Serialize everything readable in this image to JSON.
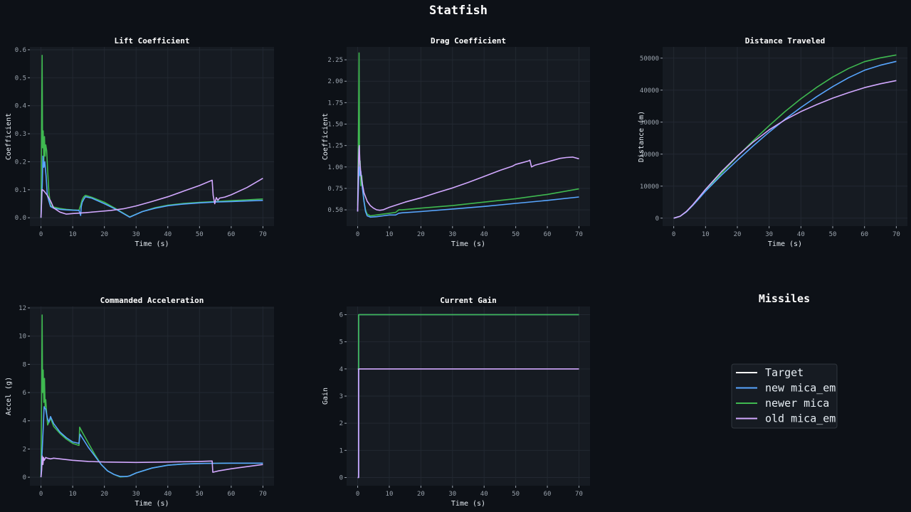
{
  "title": "Statfish",
  "colors": {
    "background": "#0d1117",
    "axes_bg": "#161b22",
    "grid": "#222831",
    "Target": "#ffffff",
    "new mica_em": "#58a6ff",
    "newer mica": "#3fb950",
    "old mica_em": "#d2a8ff"
  },
  "legend": {
    "title": "Missiles",
    "entries": [
      {
        "name": "Target",
        "color": "#ffffff"
      },
      {
        "name": "new mica_em",
        "color": "#58a6ff"
      },
      {
        "name": "newer mica",
        "color": "#3fb950"
      },
      {
        "name": "old mica_em",
        "color": "#d2a8ff"
      }
    ]
  },
  "chart_data": [
    {
      "type": "line",
      "title": "Lift Coefficient",
      "xlabel": "Time (s)",
      "ylabel": "Coefficient",
      "xlim": [
        -3.5,
        73.5
      ],
      "ylim": [
        -0.03,
        0.61
      ],
      "xticks": [
        0,
        10,
        20,
        30,
        40,
        50,
        60,
        70
      ],
      "yticks": [
        0.0,
        0.1,
        0.2,
        0.3,
        0.4,
        0.5,
        0.6
      ],
      "ytick_decimals": 1,
      "grid": true,
      "series": [
        {
          "name": "newer mica",
          "x": [
            0,
            0.2,
            0.35,
            0.5,
            0.7,
            0.9,
            1.1,
            1.3,
            1.5,
            1.8,
            2.1,
            2.5,
            3,
            3.5,
            4,
            6,
            8,
            10,
            12,
            12.5,
            13,
            13.5,
            14,
            16,
            20,
            24,
            28,
            32,
            36,
            40,
            45,
            50,
            55,
            60,
            65,
            70
          ],
          "y": [
            0,
            0.35,
            0.58,
            0.25,
            0.31,
            0.2,
            0.29,
            0.22,
            0.26,
            0.24,
            0.17,
            0.09,
            0.045,
            0.04,
            0.038,
            0.033,
            0.03,
            0.028,
            0.027,
            0.045,
            0.065,
            0.075,
            0.08,
            0.073,
            0.055,
            0.03,
            0.003,
            0.022,
            0.036,
            0.045,
            0.051,
            0.055,
            0.058,
            0.061,
            0.064,
            0.067
          ]
        },
        {
          "name": "new mica_em",
          "x": [
            0,
            0.2,
            0.4,
            0.6,
            0.9,
            1.2,
            1.6,
            2,
            2.5,
            3,
            4,
            6,
            8,
            10,
            12,
            12.5,
            12.7,
            13,
            13.5,
            14,
            16,
            20,
            24,
            28,
            32,
            36,
            40,
            45,
            50,
            55,
            60,
            65,
            70
          ],
          "y": [
            0,
            0.06,
            0.12,
            0.22,
            0.18,
            0.2,
            0.15,
            0.08,
            0.06,
            0.04,
            0.034,
            0.03,
            0.028,
            0.027,
            0.026,
            0.008,
            0.04,
            0.055,
            0.066,
            0.075,
            0.07,
            0.05,
            0.028,
            0.002,
            0.022,
            0.034,
            0.043,
            0.049,
            0.053,
            0.056,
            0.058,
            0.06,
            0.062
          ]
        },
        {
          "name": "old mica_em",
          "x": [
            0,
            0.3,
            0.5,
            1,
            2,
            3,
            4,
            6,
            8,
            10,
            14,
            18,
            22,
            26,
            30,
            35,
            40,
            45,
            50,
            54,
            54.3,
            54.8,
            55.3,
            55.8,
            56.3,
            58,
            60,
            65,
            70
          ],
          "y": [
            0,
            0.1,
            0.1,
            0.095,
            0.08,
            0.06,
            0.035,
            0.02,
            0.013,
            0.015,
            0.018,
            0.022,
            0.026,
            0.032,
            0.042,
            0.058,
            0.075,
            0.095,
            0.115,
            0.134,
            0.08,
            0.05,
            0.072,
            0.062,
            0.07,
            0.074,
            0.082,
            0.108,
            0.141
          ]
        }
      ]
    },
    {
      "type": "line",
      "title": "Drag Coefficient",
      "xlabel": "Time (s)",
      "ylabel": "Coefficient",
      "xlim": [
        -3.5,
        73.5
      ],
      "ylim": [
        0.31,
        2.4
      ],
      "xticks": [
        0,
        10,
        20,
        30,
        40,
        50,
        60,
        70
      ],
      "yticks": [
        0.5,
        0.75,
        1.0,
        1.25,
        1.5,
        1.75,
        2.0,
        2.25
      ],
      "ytick_decimals": 2,
      "grid": true,
      "series": [
        {
          "name": "newer mica",
          "x": [
            0,
            0.3,
            0.45,
            0.6,
            0.8,
            1,
            1.3,
            1.6,
            2,
            2.5,
            3,
            4,
            6,
            8,
            10,
            12,
            13,
            14,
            20,
            30,
            40,
            50,
            60,
            70
          ],
          "y": [
            0.55,
            1.6,
            2.33,
            0.9,
            1.07,
            0.78,
            0.9,
            0.75,
            0.6,
            0.5,
            0.45,
            0.43,
            0.44,
            0.45,
            0.46,
            0.47,
            0.5,
            0.5,
            0.52,
            0.55,
            0.59,
            0.63,
            0.68,
            0.745
          ]
        },
        {
          "name": "new mica_em",
          "x": [
            0,
            0.3,
            0.5,
            0.8,
            1,
            1.5,
            2,
            2.5,
            3,
            4,
            6,
            8,
            10,
            12,
            13,
            14,
            20,
            30,
            40,
            50,
            60,
            70
          ],
          "y": [
            0.48,
            0.85,
            1.0,
            0.9,
            0.95,
            0.75,
            0.6,
            0.48,
            0.43,
            0.415,
            0.42,
            0.43,
            0.44,
            0.44,
            0.46,
            0.465,
            0.48,
            0.51,
            0.54,
            0.575,
            0.61,
            0.65
          ]
        },
        {
          "name": "old mica_em",
          "x": [
            0,
            0.2,
            0.4,
            0.5,
            0.7,
            1,
            1.5,
            2,
            3,
            4,
            5,
            6,
            7,
            8,
            10,
            15,
            20,
            25,
            30,
            35,
            40,
            45,
            49,
            50,
            52,
            54,
            54.5,
            55,
            56,
            58,
            60,
            62,
            64,
            66,
            68,
            70
          ],
          "y": [
            0.48,
            0.95,
            1.2,
            1.25,
            1.05,
            0.92,
            0.8,
            0.7,
            0.6,
            0.55,
            0.52,
            0.5,
            0.495,
            0.5,
            0.53,
            0.59,
            0.64,
            0.7,
            0.755,
            0.82,
            0.89,
            0.96,
            1.01,
            1.03,
            1.05,
            1.07,
            1.08,
            1.0,
            1.02,
            1.04,
            1.06,
            1.08,
            1.1,
            1.11,
            1.115,
            1.095
          ]
        }
      ]
    },
    {
      "type": "line",
      "title": "Distance Traveled",
      "xlabel": "Time (s)",
      "ylabel": "Distance (m)",
      "xlim": [
        -3.5,
        73.5
      ],
      "ylim": [
        -2500,
        53500
      ],
      "xticks": [
        0,
        10,
        20,
        30,
        40,
        50,
        60,
        70
      ],
      "yticks": [
        0,
        10000,
        20000,
        30000,
        40000,
        50000
      ],
      "ytick_decimals": 0,
      "grid": true,
      "series": [
        {
          "name": "newer mica",
          "x": [
            0,
            2,
            4,
            6,
            8,
            10,
            15,
            20,
            25,
            30,
            35,
            40,
            45,
            50,
            55,
            60,
            65,
            70
          ],
          "y": [
            0,
            600,
            2000,
            4000,
            6200,
            8600,
            14000,
            19300,
            24200,
            28900,
            33300,
            37300,
            40900,
            44100,
            46800,
            48900,
            50100,
            51000
          ]
        },
        {
          "name": "new mica_em",
          "x": [
            0,
            2,
            4,
            6,
            8,
            10,
            15,
            20,
            25,
            30,
            35,
            40,
            45,
            50,
            55,
            60,
            65,
            70
          ],
          "y": [
            0,
            600,
            2000,
            4000,
            6200,
            8400,
            13400,
            18100,
            22600,
            26900,
            30900,
            34600,
            38000,
            41100,
            43900,
            46200,
            47800,
            49000
          ]
        },
        {
          "name": "old mica_em",
          "x": [
            0,
            2,
            4,
            6,
            8,
            10,
            15,
            20,
            25,
            30,
            35,
            40,
            45,
            50,
            55,
            60,
            65,
            70
          ],
          "y": [
            0,
            600,
            2100,
            4200,
            6600,
            9000,
            14500,
            19400,
            23800,
            27600,
            30700,
            33300,
            35500,
            37500,
            39200,
            40800,
            42000,
            43000
          ]
        }
      ]
    },
    {
      "type": "line",
      "title": "Commanded Acceleration",
      "xlabel": "Time (s)",
      "ylabel": "Accel (g)",
      "xlim": [
        -3.5,
        73.5
      ],
      "ylim": [
        -0.6,
        12.1
      ],
      "xticks": [
        0,
        10,
        20,
        30,
        40,
        50,
        60,
        70
      ],
      "yticks": [
        0,
        2,
        4,
        6,
        8,
        10,
        12
      ],
      "ytick_decimals": 0,
      "grid": true,
      "series": [
        {
          "name": "newer mica",
          "x": [
            0,
            0.2,
            0.35,
            0.5,
            0.7,
            0.9,
            1.1,
            1.3,
            1.5,
            1.8,
            2.1,
            2.4,
            2.7,
            3,
            3.5,
            4,
            6,
            8,
            10,
            12,
            12.2,
            13,
            15,
            17,
            19,
            21,
            23,
            25,
            27,
            28,
            30,
            35,
            40,
            45,
            50,
            55,
            60,
            65,
            70
          ],
          "y": [
            0,
            6,
            11.5,
            6,
            7.6,
            5.3,
            7,
            5,
            5.5,
            4.5,
            3.7,
            3.85,
            4,
            4.2,
            3.9,
            3.6,
            3.1,
            2.7,
            2.4,
            2.25,
            3.55,
            3.2,
            2.4,
            1.6,
            0.9,
            0.45,
            0.2,
            0.02,
            0.05,
            0.1,
            0.3,
            0.65,
            0.85,
            0.94,
            0.97,
            0.99,
            1.0,
            1.0,
            1.0
          ]
        },
        {
          "name": "new mica_em",
          "x": [
            0,
            0.3,
            0.6,
            1,
            1.5,
            2,
            2.5,
            3,
            4,
            6,
            8,
            10,
            12,
            12.3,
            13,
            15,
            17,
            19,
            21,
            23,
            25,
            27,
            28,
            30,
            35,
            40,
            45,
            50,
            55,
            60,
            65,
            70
          ],
          "y": [
            0,
            1.5,
            3,
            5,
            4.8,
            4.2,
            3.9,
            4.3,
            3.8,
            3.2,
            2.8,
            2.5,
            2.4,
            3.05,
            2.8,
            2.1,
            1.5,
            0.9,
            0.45,
            0.2,
            0.05,
            0.05,
            0.1,
            0.3,
            0.65,
            0.85,
            0.93,
            0.97,
            0.99,
            1.0,
            1.0,
            1.0
          ]
        },
        {
          "name": "old mica_em",
          "x": [
            0,
            0.2,
            0.4,
            0.6,
            0.8,
            1,
            1.5,
            2,
            3,
            4,
            6,
            10,
            15,
            20,
            30,
            40,
            50,
            54,
            54.2,
            56,
            60,
            65,
            70
          ],
          "y": [
            0,
            0.5,
            1.5,
            0.9,
            1.4,
            1.2,
            1.4,
            1.35,
            1.3,
            1.35,
            1.3,
            1.2,
            1.12,
            1.08,
            1.05,
            1.08,
            1.12,
            1.15,
            0.35,
            0.45,
            0.6,
            0.75,
            0.9
          ]
        }
      ]
    },
    {
      "type": "line",
      "title": "Current Gain",
      "xlabel": "Time (s)",
      "ylabel": "Gain",
      "xlim": [
        -3.5,
        73.5
      ],
      "ylim": [
        -0.3,
        6.3
      ],
      "xticks": [
        0,
        10,
        20,
        30,
        40,
        50,
        60,
        70
      ],
      "yticks": [
        0,
        1,
        2,
        3,
        4,
        5,
        6
      ],
      "ytick_decimals": 0,
      "grid": true,
      "series": [
        {
          "name": "new mica_em",
          "x": [
            0,
            0.3,
            0.3,
            70
          ],
          "y": [
            0,
            0,
            6,
            6
          ]
        },
        {
          "name": "newer mica",
          "x": [
            0,
            0.3,
            0.3,
            70
          ],
          "y": [
            4,
            4,
            6,
            6
          ]
        },
        {
          "name": "old mica_em",
          "x": [
            0,
            0.3,
            0.3,
            70
          ],
          "y": [
            0,
            0,
            4,
            4
          ]
        }
      ]
    }
  ]
}
